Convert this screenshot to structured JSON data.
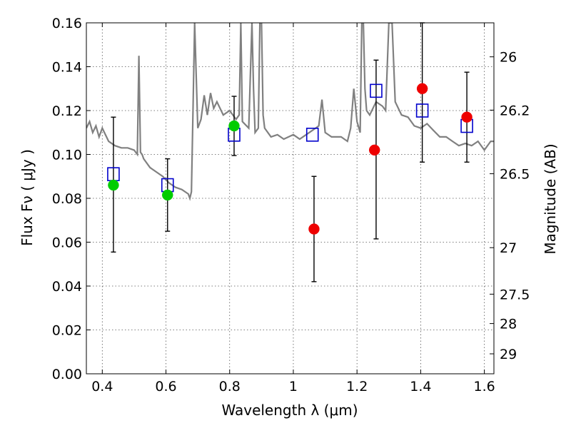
{
  "chart_data": {
    "type": "scatter",
    "xlabel": "Wavelength  λ (μm)",
    "ylabel": "Flux  Fν  ( μJy )",
    "y2label": "Magnitude (AB)",
    "xlim": [
      0.35,
      1.63
    ],
    "ylim": [
      0.0,
      0.16
    ],
    "grid": true,
    "x_ticks": [
      0.4,
      0.6,
      0.8,
      1.0,
      1.2,
      1.4,
      1.6
    ],
    "x_tick_labels": [
      "0.4",
      "0.6",
      "0.8",
      "1",
      "1.2",
      "1.4",
      "1.6"
    ],
    "y_ticks": [
      0.0,
      0.02,
      0.04,
      0.06,
      0.08,
      0.1,
      0.12,
      0.14,
      0.16
    ],
    "y_tick_labels": [
      "0.00",
      "0.02",
      "0.04",
      "0.06",
      "0.08",
      "0.10",
      "0.12",
      "0.14",
      "0.16"
    ],
    "y2_ticks": [
      {
        "label": "26",
        "flux": 0.1445
      },
      {
        "label": "26.2",
        "flux": 0.1202
      },
      {
        "label": "26.5",
        "flux": 0.0912
      },
      {
        "label": "27",
        "flux": 0.0575
      },
      {
        "label": "27.5",
        "flux": 0.0363
      },
      {
        "label": "28",
        "flux": 0.0229
      },
      {
        "label": "29",
        "flux": 0.0091
      }
    ],
    "spectrum": {
      "color": "#808080",
      "x": [
        0.35,
        0.36,
        0.37,
        0.38,
        0.39,
        0.4,
        0.42,
        0.44,
        0.46,
        0.48,
        0.5,
        0.51,
        0.515,
        0.52,
        0.525,
        0.53,
        0.55,
        0.57,
        0.59,
        0.61,
        0.63,
        0.65,
        0.67,
        0.675,
        0.68,
        0.685,
        0.69,
        0.7,
        0.71,
        0.72,
        0.73,
        0.74,
        0.75,
        0.76,
        0.78,
        0.8,
        0.82,
        0.83,
        0.835,
        0.84,
        0.86,
        0.87,
        0.875,
        0.88,
        0.89,
        0.895,
        0.9,
        0.905,
        0.91,
        0.93,
        0.95,
        0.97,
        1.0,
        1.02,
        1.05,
        1.07,
        1.08,
        1.09,
        1.1,
        1.12,
        1.15,
        1.17,
        1.18,
        1.19,
        1.2,
        1.21,
        1.215,
        1.22,
        1.225,
        1.23,
        1.24,
        1.26,
        1.28,
        1.29,
        1.3,
        1.31,
        1.32,
        1.34,
        1.36,
        1.38,
        1.4,
        1.42,
        1.44,
        1.46,
        1.48,
        1.5,
        1.52,
        1.54,
        1.56,
        1.58,
        1.6,
        1.62,
        1.63
      ],
      "y": [
        0.112,
        0.115,
        0.11,
        0.113,
        0.108,
        0.112,
        0.106,
        0.104,
        0.103,
        0.103,
        0.102,
        0.1,
        0.145,
        0.101,
        0.1,
        0.098,
        0.094,
        0.092,
        0.09,
        0.087,
        0.085,
        0.084,
        0.082,
        0.08,
        0.083,
        0.12,
        0.16,
        0.112,
        0.116,
        0.127,
        0.118,
        0.128,
        0.121,
        0.124,
        0.118,
        0.12,
        0.116,
        0.118,
        0.16,
        0.115,
        0.112,
        0.16,
        0.13,
        0.11,
        0.112,
        0.16,
        0.16,
        0.118,
        0.112,
        0.108,
        0.109,
        0.107,
        0.109,
        0.107,
        0.11,
        0.112,
        0.113,
        0.125,
        0.11,
        0.108,
        0.108,
        0.106,
        0.112,
        0.13,
        0.115,
        0.11,
        0.16,
        0.16,
        0.13,
        0.12,
        0.118,
        0.124,
        0.122,
        0.12,
        0.16,
        0.16,
        0.124,
        0.118,
        0.117,
        0.113,
        0.112,
        0.114,
        0.111,
        0.108,
        0.108,
        0.106,
        0.104,
        0.105,
        0.104,
        0.106,
        0.102,
        0.106,
        0.106
      ]
    },
    "series": [
      {
        "marker": "square",
        "color": "#0000cc",
        "x": [
          0.435,
          0.605,
          0.814,
          1.06,
          1.26,
          1.405,
          1.545
        ],
        "y": [
          0.091,
          0.086,
          0.109,
          0.109,
          0.129,
          0.12,
          0.113
        ]
      },
      {
        "marker": "circle",
        "color": "#00cc00",
        "x": [
          0.435,
          0.605,
          0.814
        ],
        "y": [
          0.086,
          0.0815,
          0.113
        ]
      },
      {
        "marker": "circle",
        "color": "#ee0000",
        "x": [
          1.065,
          1.255,
          1.405,
          1.545
        ],
        "y": [
          0.066,
          0.102,
          0.13,
          0.117
        ]
      }
    ],
    "error_bars": {
      "color": "#000000",
      "x": [
        0.435,
        0.605,
        0.814,
        1.065,
        1.26,
        1.405,
        1.545
      ],
      "low": [
        0.0555,
        0.065,
        0.0995,
        0.042,
        0.0615,
        0.0965,
        0.0965
      ],
      "high": [
        0.117,
        0.098,
        0.1265,
        0.09,
        0.143,
        0.16,
        0.1375
      ]
    }
  }
}
